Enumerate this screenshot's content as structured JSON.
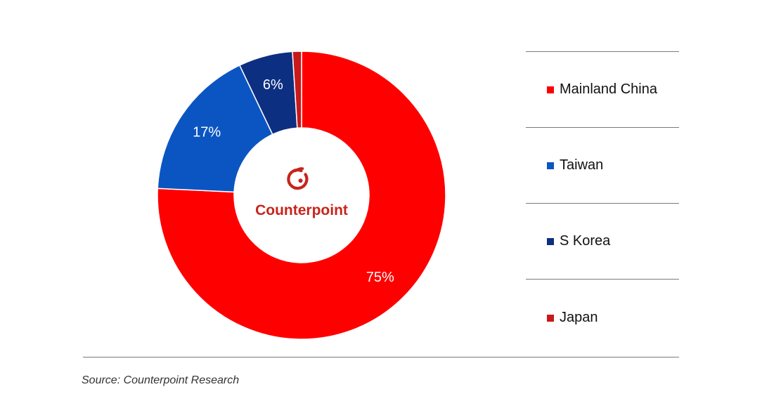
{
  "chart_data": {
    "type": "pie",
    "variant": "donut",
    "title": "",
    "categories": [
      "Mainland China",
      "Taiwan",
      "S Korea",
      "Japan"
    ],
    "values": [
      75,
      17,
      6,
      1
    ],
    "value_labels": [
      "75%",
      "17%",
      "6%",
      ""
    ],
    "colors": [
      "#ff0000",
      "#0b55c2",
      "#0d2f82",
      "#c81a1a"
    ],
    "legend_position": "right"
  },
  "center_logo": {
    "text": "Counterpoint",
    "color": "#c8241c"
  },
  "source": "Source: Counterpoint Research"
}
